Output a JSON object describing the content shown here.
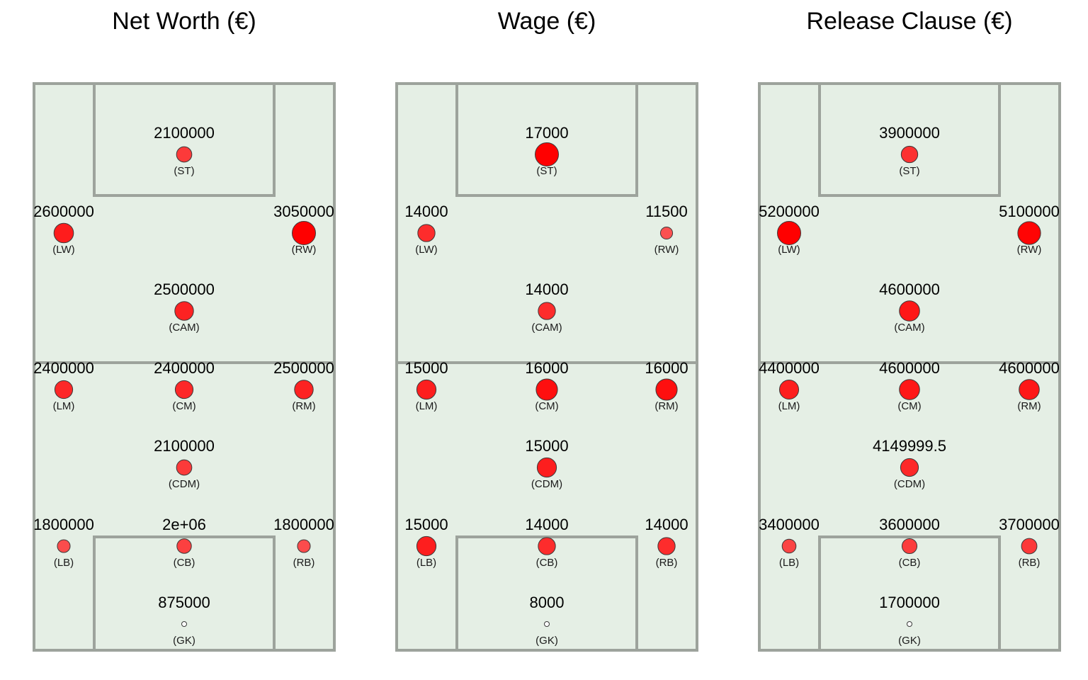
{
  "colors": {
    "field": "#e5efe5",
    "lines": "#9da39c",
    "low": "#f2f2f2",
    "high": "#ff0000"
  },
  "chart_data": [
    {
      "type": "scatter",
      "title": "Net Worth (€)",
      "points": [
        {
          "pos": "(ST)",
          "label": "2100000",
          "value": 2100000
        },
        {
          "pos": "(LW)",
          "label": "2600000",
          "value": 2600000
        },
        {
          "pos": "(RW)",
          "label": "3050000",
          "value": 3050000
        },
        {
          "pos": "(CAM)",
          "label": "2500000",
          "value": 2500000
        },
        {
          "pos": "(LM)",
          "label": "2400000",
          "value": 2400000
        },
        {
          "pos": "(CM)",
          "label": "2400000",
          "value": 2400000
        },
        {
          "pos": "(RM)",
          "label": "2500000",
          "value": 2500000
        },
        {
          "pos": "(CDM)",
          "label": "2100000",
          "value": 2100000
        },
        {
          "pos": "(LB)",
          "label": "1800000",
          "value": 1800000
        },
        {
          "pos": "(CB)",
          "label": "2e+06",
          "value": 2000000
        },
        {
          "pos": "(RB)",
          "label": "1800000",
          "value": 1800000
        },
        {
          "pos": "(GK)",
          "label": "875000",
          "value": 875000
        }
      ]
    },
    {
      "type": "scatter",
      "title": "Wage (€)",
      "points": [
        {
          "pos": "(ST)",
          "label": "17000",
          "value": 17000
        },
        {
          "pos": "(LW)",
          "label": "14000",
          "value": 14000
        },
        {
          "pos": "(RW)",
          "label": "11500",
          "value": 11500
        },
        {
          "pos": "(CAM)",
          "label": "14000",
          "value": 14000
        },
        {
          "pos": "(LM)",
          "label": "15000",
          "value": 15000
        },
        {
          "pos": "(CM)",
          "label": "16000",
          "value": 16000
        },
        {
          "pos": "(RM)",
          "label": "16000",
          "value": 16000
        },
        {
          "pos": "(CDM)",
          "label": "15000",
          "value": 15000
        },
        {
          "pos": "(LB)",
          "label": "15000",
          "value": 15000
        },
        {
          "pos": "(CB)",
          "label": "14000",
          "value": 14000
        },
        {
          "pos": "(RB)",
          "label": "14000",
          "value": 14000
        },
        {
          "pos": "(GK)",
          "label": "8000",
          "value": 8000
        }
      ]
    },
    {
      "type": "scatter",
      "title": "Release Clause (€)",
      "points": [
        {
          "pos": "(ST)",
          "label": "3900000",
          "value": 3900000
        },
        {
          "pos": "(LW)",
          "label": "5200000",
          "value": 5200000
        },
        {
          "pos": "(RW)",
          "label": "5100000",
          "value": 5100000
        },
        {
          "pos": "(CAM)",
          "label": "4600000",
          "value": 4600000
        },
        {
          "pos": "(LM)",
          "label": "4400000",
          "value": 4400000
        },
        {
          "pos": "(CM)",
          "label": "4600000",
          "value": 4600000
        },
        {
          "pos": "(RM)",
          "label": "4600000",
          "value": 4600000
        },
        {
          "pos": "(CDM)",
          "label": "4149999.5",
          "value": 4149999.5
        },
        {
          "pos": "(LB)",
          "label": "3400000",
          "value": 3400000
        },
        {
          "pos": "(CB)",
          "label": "3600000",
          "value": 3600000
        },
        {
          "pos": "(RB)",
          "label": "3700000",
          "value": 3700000
        },
        {
          "pos": "(GK)",
          "label": "1700000",
          "value": 1700000
        }
      ]
    }
  ]
}
